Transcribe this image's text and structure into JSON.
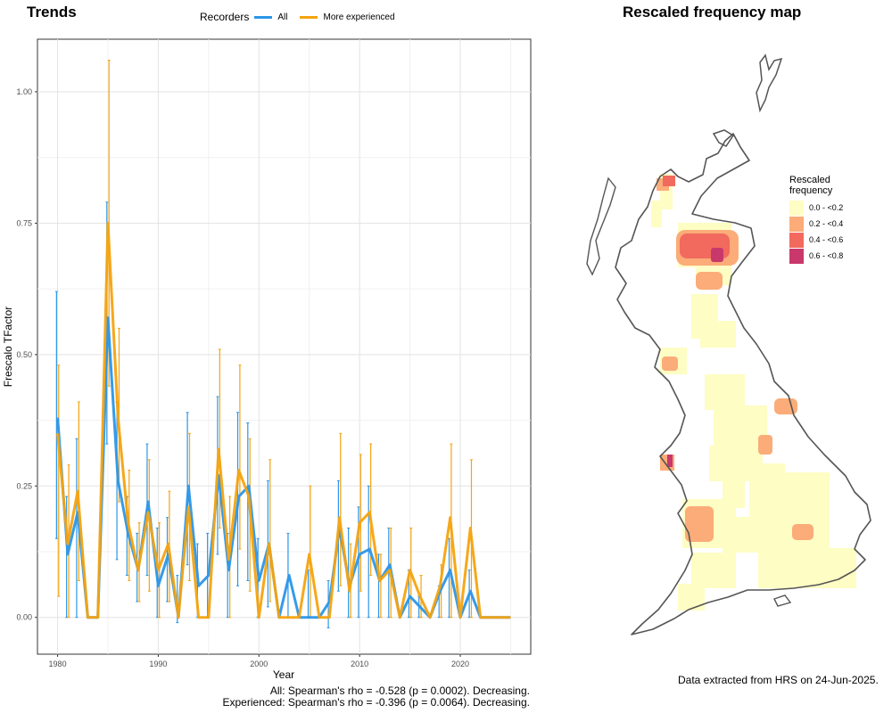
{
  "trends_title": "Trends",
  "map_title": "Rescaled frequency map",
  "legend": {
    "title": "Recorders",
    "items": [
      {
        "name": "All",
        "color": "#2b96e8"
      },
      {
        "name": "More experienced",
        "color": "#f5a30f"
      }
    ]
  },
  "stats": {
    "all": "All: Spearman's rho = -0.528 (p = 0.0002). Decreasing.",
    "experienced": "Experienced: Spearman's rho = -0.396 (p = 0.0064). Decreasing."
  },
  "map_legend": {
    "title_line1": "Rescaled",
    "title_line2": "frequency",
    "items": [
      {
        "label": "0.0 - <0.2",
        "color": "#fefdc4"
      },
      {
        "label": "0.2 - <0.4",
        "color": "#fbac78"
      },
      {
        "label": "0.4 - <0.6",
        "color": "#f26a5e"
      },
      {
        "label": "0.6 - <0.8",
        "color": "#c9386b"
      }
    ]
  },
  "footer": "Data extracted from HRS on 24-Jun-2025.",
  "chart_data": {
    "type": "line",
    "title": "Trends",
    "xlabel": "Year",
    "ylabel": "Frescalo TFactor",
    "xlim": [
      1978.0,
      2027.0
    ],
    "ylim": [
      -0.07,
      1.1
    ],
    "x_ticks": [
      1980,
      1990,
      2000,
      2010,
      2020
    ],
    "y_ticks": [
      0.0,
      0.25,
      0.5,
      0.75,
      1.0
    ],
    "y_tick_labels": [
      "0.00",
      "0.25",
      "0.50",
      "0.75",
      "1.00"
    ],
    "grid": true,
    "legend_position": "top",
    "series": [
      {
        "name": "All",
        "color": "#2b96e8",
        "x": [
          1980,
          1981,
          1982,
          1983,
          1984,
          1985,
          1986,
          1987,
          1988,
          1989,
          1990,
          1991,
          1992,
          1993,
          1994,
          1995,
          1996,
          1997,
          1998,
          1999,
          2000,
          2001,
          2002,
          2003,
          2004,
          2005,
          2006,
          2007,
          2008,
          2009,
          2010,
          2011,
          2012,
          2013,
          2014,
          2015,
          2016,
          2017,
          2018,
          2019,
          2020,
          2021,
          2022,
          2023,
          2024,
          2025
        ],
        "y": [
          0.38,
          0.12,
          0.2,
          0.0,
          0.0,
          0.57,
          0.26,
          0.16,
          0.09,
          0.22,
          0.06,
          0.12,
          0.0,
          0.25,
          0.06,
          0.08,
          0.27,
          0.09,
          0.23,
          0.25,
          0.07,
          0.14,
          0.0,
          0.08,
          0.0,
          0.0,
          0.0,
          0.03,
          0.17,
          0.06,
          0.12,
          0.13,
          0.07,
          0.1,
          0.0,
          0.04,
          0.02,
          0.0,
          0.05,
          0.09,
          0.0,
          0.05,
          0.0,
          0.0,
          0.0,
          0.0
        ],
        "err_low": [
          0.15,
          0.0,
          0.0,
          0.0,
          0.0,
          0.33,
          0.11,
          0.08,
          0.03,
          0.08,
          0.0,
          0.03,
          -0.01,
          0.1,
          0.0,
          0.0,
          0.12,
          0.0,
          0.06,
          0.07,
          0.0,
          0.02,
          0.0,
          0.0,
          0.0,
          0.0,
          0.0,
          -0.02,
          0.05,
          0.0,
          0.0,
          0.0,
          0.0,
          0.0,
          0.0,
          0.0,
          0.0,
          0.0,
          0.0,
          0.0,
          0.0,
          0.0,
          0.0,
          0.0,
          0.0,
          0.0
        ],
        "err_high": [
          0.62,
          0.23,
          0.34,
          0.0,
          0.0,
          0.79,
          0.41,
          0.23,
          0.16,
          0.33,
          0.17,
          0.19,
          0.08,
          0.39,
          0.14,
          0.16,
          0.42,
          0.16,
          0.39,
          0.37,
          0.15,
          0.26,
          0.0,
          0.16,
          0.0,
          0.09,
          0.0,
          0.07,
          0.26,
          0.17,
          0.21,
          0.25,
          0.12,
          0.17,
          0.0,
          0.09,
          0.04,
          0.0,
          0.06,
          0.15,
          0.0,
          0.09,
          0.0,
          0.0,
          0.0,
          0.0
        ]
      },
      {
        "name": "More experienced",
        "color": "#f5a30f",
        "x": [
          1980,
          1981,
          1982,
          1983,
          1984,
          1985,
          1986,
          1987,
          1988,
          1989,
          1990,
          1991,
          1992,
          1993,
          1994,
          1995,
          1996,
          1997,
          1998,
          1999,
          2000,
          2001,
          2002,
          2003,
          2004,
          2005,
          2006,
          2007,
          2008,
          2009,
          2010,
          2011,
          2012,
          2013,
          2014,
          2015,
          2016,
          2017,
          2018,
          2019,
          2020,
          2021,
          2022,
          2023,
          2024,
          2025
        ],
        "y": [
          0.35,
          0.14,
          0.24,
          0.0,
          0.0,
          0.75,
          0.38,
          0.18,
          0.09,
          0.2,
          0.09,
          0.14,
          0.0,
          0.21,
          0.0,
          0.0,
          0.32,
          0.11,
          0.28,
          0.23,
          0.0,
          0.14,
          0.0,
          0.0,
          0.0,
          0.12,
          0.0,
          0.0,
          0.19,
          0.05,
          0.18,
          0.2,
          0.07,
          0.09,
          0.0,
          0.09,
          0.04,
          0.0,
          0.06,
          0.19,
          0.0,
          0.17,
          0.0,
          0.0,
          0.0,
          0.0
        ],
        "err_low": [
          0.04,
          0.0,
          0.07,
          0.0,
          0.0,
          0.44,
          0.22,
          0.07,
          0.03,
          0.05,
          0.0,
          0.03,
          0.0,
          0.07,
          0.0,
          0.0,
          0.17,
          0.0,
          0.13,
          0.05,
          0.0,
          0.03,
          0.0,
          0.0,
          0.0,
          0.0,
          0.0,
          0.0,
          0.06,
          0.0,
          0.05,
          0.08,
          0.0,
          0.0,
          0.0,
          0.0,
          0.0,
          0.0,
          0.0,
          0.0,
          0.0,
          0.0,
          0.0,
          0.0,
          0.0,
          0.0
        ],
        "err_high": [
          0.48,
          0.29,
          0.41,
          0.0,
          0.0,
          1.06,
          0.55,
          0.28,
          0.18,
          0.3,
          0.18,
          0.24,
          0.0,
          0.35,
          0.0,
          0.0,
          0.51,
          0.23,
          0.48,
          0.34,
          0.0,
          0.3,
          0.0,
          0.0,
          0.0,
          0.25,
          0.0,
          0.0,
          0.35,
          0.14,
          0.31,
          0.33,
          0.12,
          0.17,
          0.0,
          0.17,
          0.08,
          0.0,
          0.1,
          0.33,
          0.0,
          0.3,
          0.0,
          0.0,
          0.0,
          0.0
        ]
      }
    ]
  }
}
